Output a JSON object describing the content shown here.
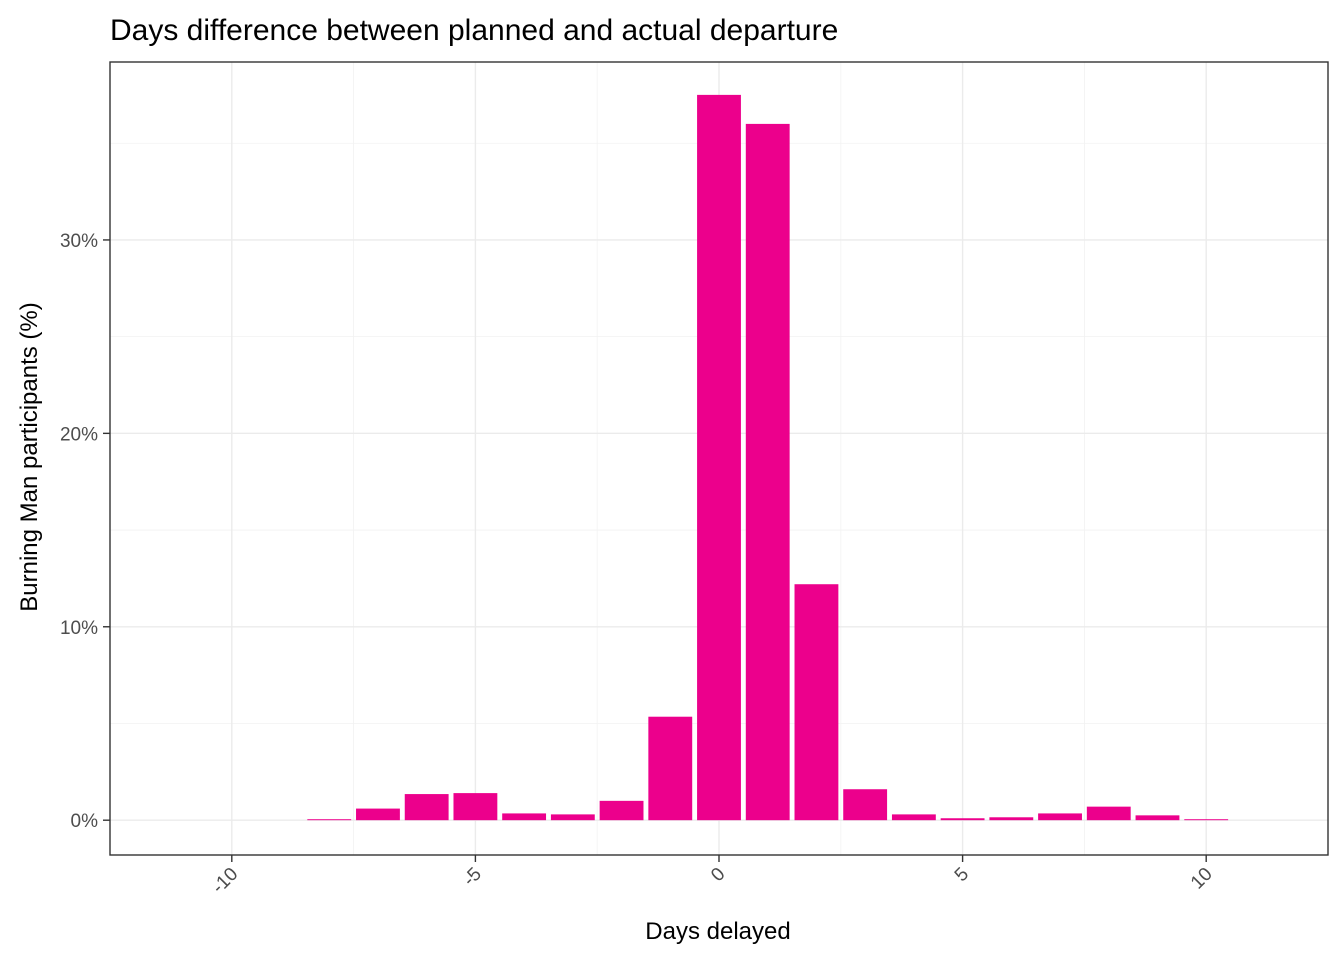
{
  "chart_data": {
    "type": "bar",
    "title": "Days difference between planned and actual departure",
    "xlabel": "Days delayed",
    "ylabel": "Burning Man participants (%)",
    "x": [
      -8,
      -7,
      -6,
      -5,
      -4,
      -3,
      -2,
      -1,
      0,
      1,
      2,
      3,
      4,
      5,
      6,
      7,
      8,
      9,
      10
    ],
    "values": [
      0.05,
      0.6,
      1.35,
      1.4,
      0.35,
      0.3,
      1.0,
      5.35,
      37.5,
      36.0,
      12.2,
      1.6,
      0.3,
      0.1,
      0.15,
      0.35,
      0.7,
      0.25,
      0.05
    ],
    "xlim": [
      -12.5,
      12.5
    ],
    "ylim": [
      -1.8,
      39.2
    ],
    "x_ticks": [
      -10,
      -5,
      0,
      5,
      10
    ],
    "x_tick_labels": [
      "-10",
      "-5",
      "0",
      "5",
      "10"
    ],
    "y_ticks": [
      0,
      10,
      20,
      30
    ],
    "y_tick_labels": [
      "0%",
      "10%",
      "20%",
      "30%"
    ],
    "bar_color": "#EC008C",
    "grid": true,
    "legend": "none"
  }
}
